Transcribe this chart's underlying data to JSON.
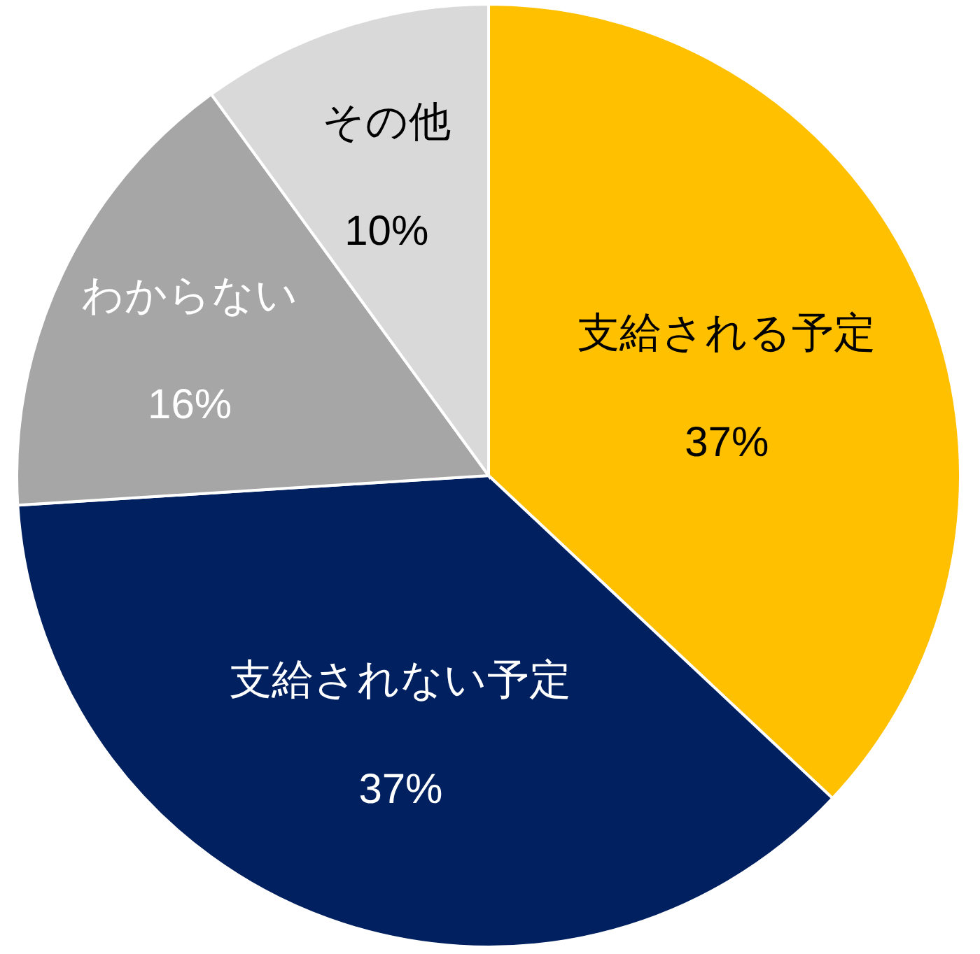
{
  "chart_data": {
    "type": "pie",
    "categories": [
      "支給される予定",
      "支給されない予定",
      "わからない",
      "その他"
    ],
    "values": [
      37,
      37,
      16,
      10
    ],
    "value_labels": [
      "37%",
      "37%",
      "16%",
      "10%"
    ],
    "colors": [
      "#ffc000",
      "#002060",
      "#a6a6a6",
      "#d9d9d9"
    ]
  }
}
